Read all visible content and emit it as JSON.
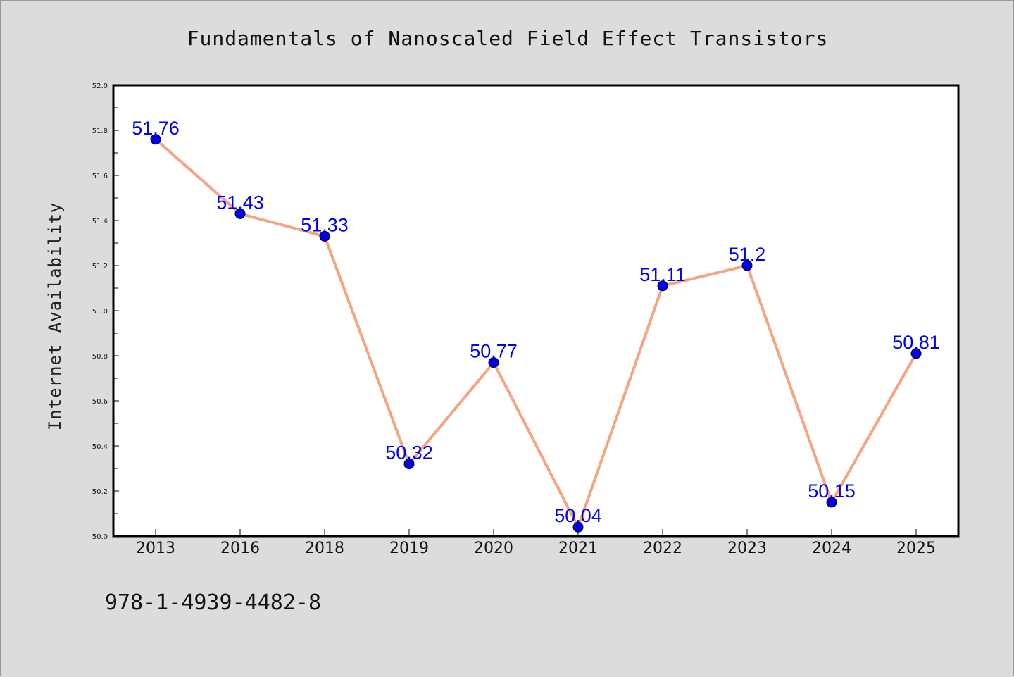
{
  "chart_data": {
    "type": "line",
    "title": "Fundamentals of Nanoscaled Field Effect Transistors",
    "xlabel": "",
    "ylabel": "Internet Availability",
    "categories": [
      "2013",
      "2016",
      "2018",
      "2019",
      "2020",
      "2021",
      "2022",
      "2023",
      "2024",
      "2025"
    ],
    "series": [
      {
        "values": [
          51.76,
          51.43,
          51.33,
          50.32,
          50.77,
          50.04,
          51.11,
          51.2,
          50.15,
          50.81
        ]
      }
    ],
    "data_labels": [
      "51.76",
      "51.43",
      "51.33",
      "50.32",
      "50.77",
      "50.04",
      "51.11",
      "51.2",
      "50.15",
      "50.81"
    ],
    "ylim": [
      50.0,
      52.0
    ],
    "yticks": [
      "50.0",
      "50.2",
      "50.4",
      "50.6",
      "50.8",
      "51.0",
      "51.2",
      "51.4",
      "51.6",
      "51.8",
      "52.0"
    ],
    "grid": false,
    "legend": "none",
    "colors": {
      "line": "#f4a582",
      "marker": "#0000ee",
      "label": "#0000ee",
      "figure_background": "#dcdcdc",
      "plot_background": "#ffffff"
    }
  },
  "footer": {
    "isbn": "978-1-4939-4482-8"
  }
}
